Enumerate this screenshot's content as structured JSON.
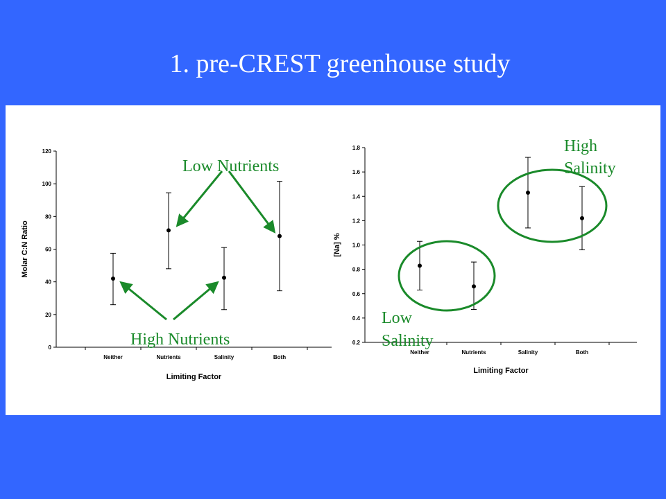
{
  "slide": {
    "title": "1.  pre-CREST greenhouse study"
  },
  "colors": {
    "background": "#3366ff",
    "panel": "#ffffff",
    "annotation": "#1a8a2a"
  },
  "chart_data": [
    {
      "type": "scatter",
      "categories": [
        "Neither",
        "Nutrients",
        "Salinity",
        "Both"
      ],
      "values": [
        42,
        71.5,
        42.5,
        68
      ],
      "error_low": [
        26,
        48,
        23,
        34.5
      ],
      "error_high": [
        57.5,
        94.5,
        61,
        101.5
      ],
      "xlabel": "Limiting Factor",
      "ylabel": "Molar C:N Ratio",
      "ylim": [
        0,
        120
      ],
      "yticks": [
        0,
        20,
        40,
        60,
        80,
        100,
        120
      ],
      "grid": false,
      "annotations": [
        {
          "text": "Low Nutrients",
          "points_to": [
            "Nutrients",
            "Both"
          ]
        },
        {
          "text": "High Nutrients",
          "points_to": [
            "Neither",
            "Salinity"
          ]
        }
      ]
    },
    {
      "type": "scatter",
      "categories": [
        "Neither",
        "Nutrients",
        "Salinity",
        "Both"
      ],
      "values": [
        0.83,
        0.66,
        1.43,
        1.22
      ],
      "error_low": [
        0.63,
        0.47,
        1.14,
        0.96
      ],
      "error_high": [
        1.03,
        0.86,
        1.72,
        1.48
      ],
      "xlabel": "Limiting Factor",
      "ylabel": "[Na] %",
      "ylim": [
        0.2,
        1.8
      ],
      "yticks": [
        0.2,
        0.4,
        0.6,
        0.8,
        1.0,
        1.2,
        1.4,
        1.6,
        1.8
      ],
      "grid": false,
      "annotations": [
        {
          "text": "Low Salinity",
          "groups": [
            "Neither",
            "Nutrients"
          ]
        },
        {
          "text": "High Salinity",
          "groups": [
            "Salinity",
            "Both"
          ]
        }
      ]
    }
  ]
}
